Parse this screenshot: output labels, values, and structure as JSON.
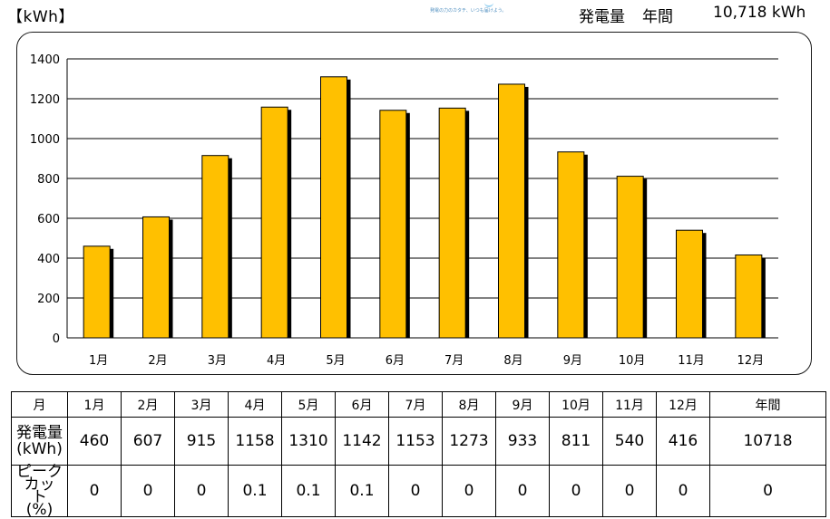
{
  "header": {
    "unit": "【kWh】",
    "tagline": "発電の力のカタチ、いつも届けよう。",
    "annual_label": "発電量",
    "annual_period": "年間",
    "annual_value": "10,718 kWh"
  },
  "chart_data": {
    "type": "bar",
    "categories": [
      "1月",
      "2月",
      "3月",
      "4月",
      "5月",
      "6月",
      "7月",
      "8月",
      "9月",
      "10月",
      "11月",
      "12月"
    ],
    "values": [
      460,
      607,
      915,
      1158,
      1310,
      1142,
      1153,
      1273,
      933,
      811,
      540,
      416
    ],
    "ylim": [
      0,
      1400
    ],
    "yticks": [
      0,
      200,
      400,
      600,
      800,
      1000,
      1200,
      1400
    ],
    "grid": true,
    "colors": {
      "bar": "#FFC000",
      "bar_outline": "#000000",
      "bar_shadow": "#000000"
    }
  },
  "table": {
    "header_label": "月",
    "months": [
      "1月",
      "2月",
      "3月",
      "4月",
      "5月",
      "6月",
      "7月",
      "8月",
      "9月",
      "10月",
      "11月",
      "12月"
    ],
    "total_label": "年間",
    "generation_label_line1": "発電量",
    "generation_label_line2": "(kWh)",
    "generation_values": [
      "460",
      "607",
      "915",
      "1158",
      "1310",
      "1142",
      "1153",
      "1273",
      "933",
      "811",
      "540",
      "416"
    ],
    "generation_total": "10718",
    "peak_label_line1": "ピークカッ",
    "peak_label_line2": "ト",
    "peak_label_line3": "(%)",
    "peak_values": [
      "0",
      "0",
      "0",
      "0.1",
      "0.1",
      "0.1",
      "0",
      "0",
      "0",
      "0",
      "0",
      "0"
    ],
    "peak_total": "0"
  }
}
